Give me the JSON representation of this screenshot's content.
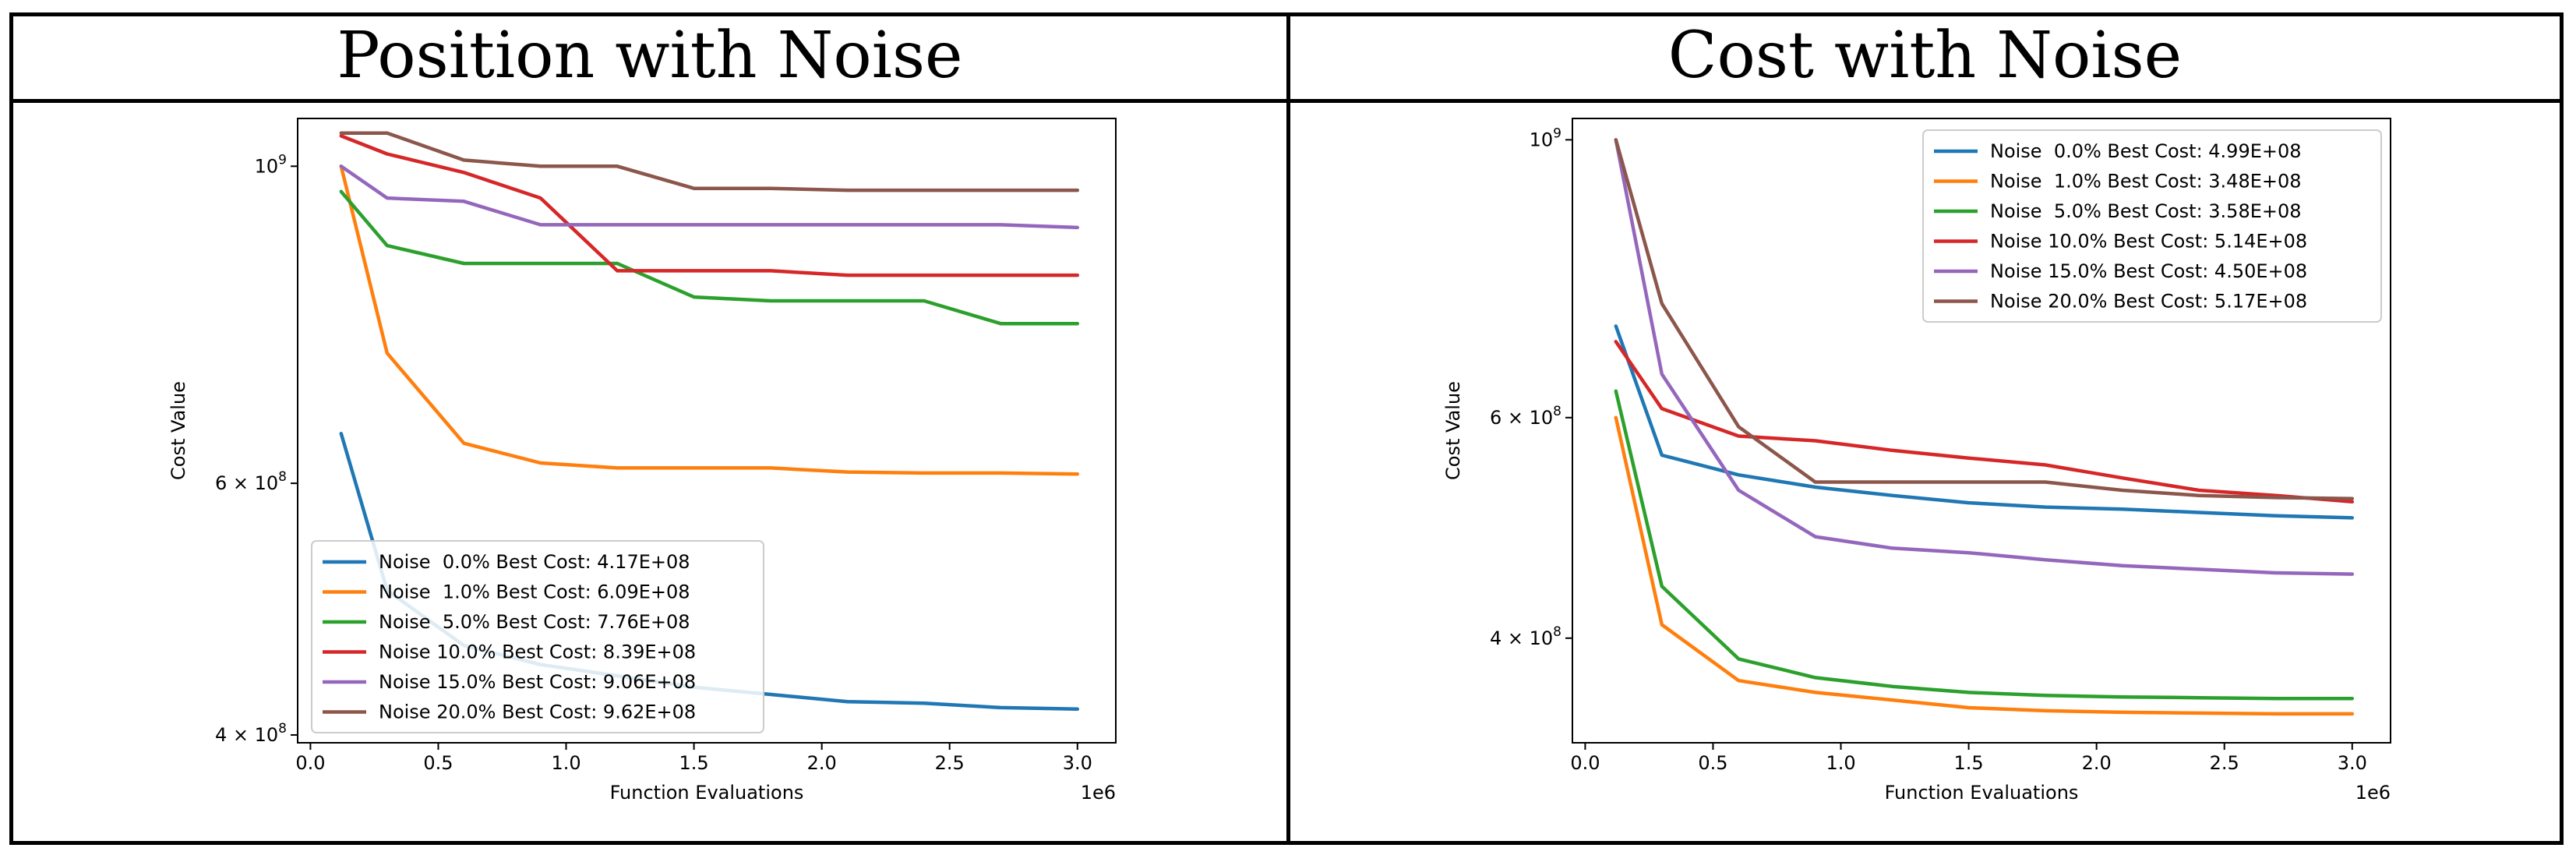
{
  "panels": [
    {
      "title": "Position with Noise"
    },
    {
      "title": "Cost with Noise"
    }
  ],
  "colors": [
    "#1f77b4",
    "#ff7f0e",
    "#2ca02c",
    "#d62728",
    "#9467bd",
    "#8c564b"
  ],
  "chart_data": [
    {
      "type": "line",
      "title": "Position with Noise",
      "xlabel": "Function Evaluations",
      "ylabel": "Cost Value",
      "x_offset_label": "1e6",
      "xlim": [
        -0.05,
        3.15
      ],
      "ylim": [
        395000000,
        1080000000
      ],
      "yscale": "log",
      "xticks": [
        0,
        0.5,
        1,
        1.5,
        2,
        2.5,
        3
      ],
      "xtick_labels": [
        "0.0",
        "0.5",
        "1.0",
        "1.5",
        "2.0",
        "2.5",
        "3.0"
      ],
      "yticks": [
        {
          "value": 1000000000,
          "base": "10",
          "exp": "9",
          "mant": ""
        },
        {
          "value": 600000000,
          "base": "10",
          "exp": "8",
          "mant": "6 × "
        },
        {
          "value": 400000000,
          "base": "10",
          "exp": "8",
          "mant": "4 × "
        }
      ],
      "legend_position": "lower-left",
      "x": [
        0.12,
        0.3,
        0.6,
        0.9,
        1.2,
        1.5,
        1.8,
        2.1,
        2.4,
        2.7,
        3.0
      ],
      "series": [
        {
          "name": "Noise  0.0% Best Cost: 4.17E+08",
          "values": [
            650000000,
            505000000,
            462000000,
            448000000,
            440000000,
            432000000,
            427000000,
            422000000,
            421000000,
            418000000,
            417000000
          ]
        },
        {
          "name": "Noise  1.0% Best Cost: 6.09E+08",
          "values": [
            1000000000,
            740000000,
            640000000,
            620000000,
            615000000,
            615000000,
            615000000,
            611000000,
            610000000,
            610000000,
            609000000
          ]
        },
        {
          "name": "Noise  5.0% Best Cost: 7.76E+08",
          "values": [
            960000000,
            880000000,
            855000000,
            855000000,
            855000000,
            810000000,
            805000000,
            805000000,
            805000000,
            776000000,
            776000000
          ]
        },
        {
          "name": "Noise 10.0% Best Cost: 8.39E+08",
          "values": [
            1050000000,
            1020000000,
            990000000,
            950000000,
            845000000,
            845000000,
            845000000,
            839000000,
            839000000,
            839000000,
            839000000
          ]
        },
        {
          "name": "Noise 15.0% Best Cost: 9.06E+08",
          "values": [
            1000000000,
            950000000,
            945000000,
            910000000,
            910000000,
            910000000,
            910000000,
            910000000,
            910000000,
            910000000,
            906000000
          ]
        },
        {
          "name": "Noise 20.0% Best Cost: 9.62E+08",
          "values": [
            1055000000,
            1055000000,
            1010000000,
            1000000000,
            1000000000,
            965000000,
            965000000,
            962000000,
            962000000,
            962000000,
            962000000
          ]
        }
      ]
    },
    {
      "type": "line",
      "title": "Cost with Noise",
      "xlabel": "Function Evaluations",
      "ylabel": "Cost Value",
      "x_offset_label": "1e6",
      "xlim": [
        -0.05,
        3.15
      ],
      "ylim": [
        330000000,
        1040000000
      ],
      "yscale": "log",
      "xticks": [
        0,
        0.5,
        1,
        1.5,
        2,
        2.5,
        3
      ],
      "xtick_labels": [
        "0.0",
        "0.5",
        "1.0",
        "1.5",
        "2.0",
        "2.5",
        "3.0"
      ],
      "yticks": [
        {
          "value": 1000000000,
          "base": "10",
          "exp": "9",
          "mant": ""
        },
        {
          "value": 600000000,
          "base": "10",
          "exp": "8",
          "mant": "6 × "
        },
        {
          "value": 400000000,
          "base": "10",
          "exp": "8",
          "mant": "4 × "
        }
      ],
      "legend_position": "upper-right",
      "x": [
        0.12,
        0.3,
        0.6,
        0.9,
        1.2,
        1.5,
        1.8,
        2.1,
        2.4,
        2.7,
        3.0
      ],
      "series": [
        {
          "name": "Noise  0.0% Best Cost: 4.99E+08",
          "values": [
            710000000,
            560000000,
            540000000,
            528000000,
            520000000,
            513000000,
            509000000,
            507000000,
            504000000,
            501000000,
            499000000
          ]
        },
        {
          "name": "Noise  1.0% Best Cost: 3.48E+08",
          "values": [
            600000000,
            410000000,
            370000000,
            362000000,
            357000000,
            352000000,
            350000000,
            349000000,
            348500000,
            348000000,
            348000000
          ]
        },
        {
          "name": "Noise  5.0% Best Cost: 3.58E+08",
          "values": [
            630000000,
            440000000,
            385000000,
            372000000,
            366000000,
            362000000,
            360000000,
            359000000,
            358500000,
            358000000,
            358000000
          ]
        },
        {
          "name": "Noise 10.0% Best Cost: 5.14E+08",
          "values": [
            690000000,
            610000000,
            580000000,
            575000000,
            565000000,
            557000000,
            550000000,
            537000000,
            525000000,
            520000000,
            514000000
          ]
        },
        {
          "name": "Noise 15.0% Best Cost: 4.50E+08",
          "values": [
            1000000000,
            650000000,
            525000000,
            482000000,
            472000000,
            468000000,
            462000000,
            457000000,
            454000000,
            451000000,
            450000000
          ]
        },
        {
          "name": "Noise 20.0% Best Cost: 5.17E+08",
          "values": [
            1000000000,
            740000000,
            590000000,
            533000000,
            533000000,
            533000000,
            533000000,
            525000000,
            520000000,
            518000000,
            517000000
          ]
        }
      ]
    }
  ]
}
